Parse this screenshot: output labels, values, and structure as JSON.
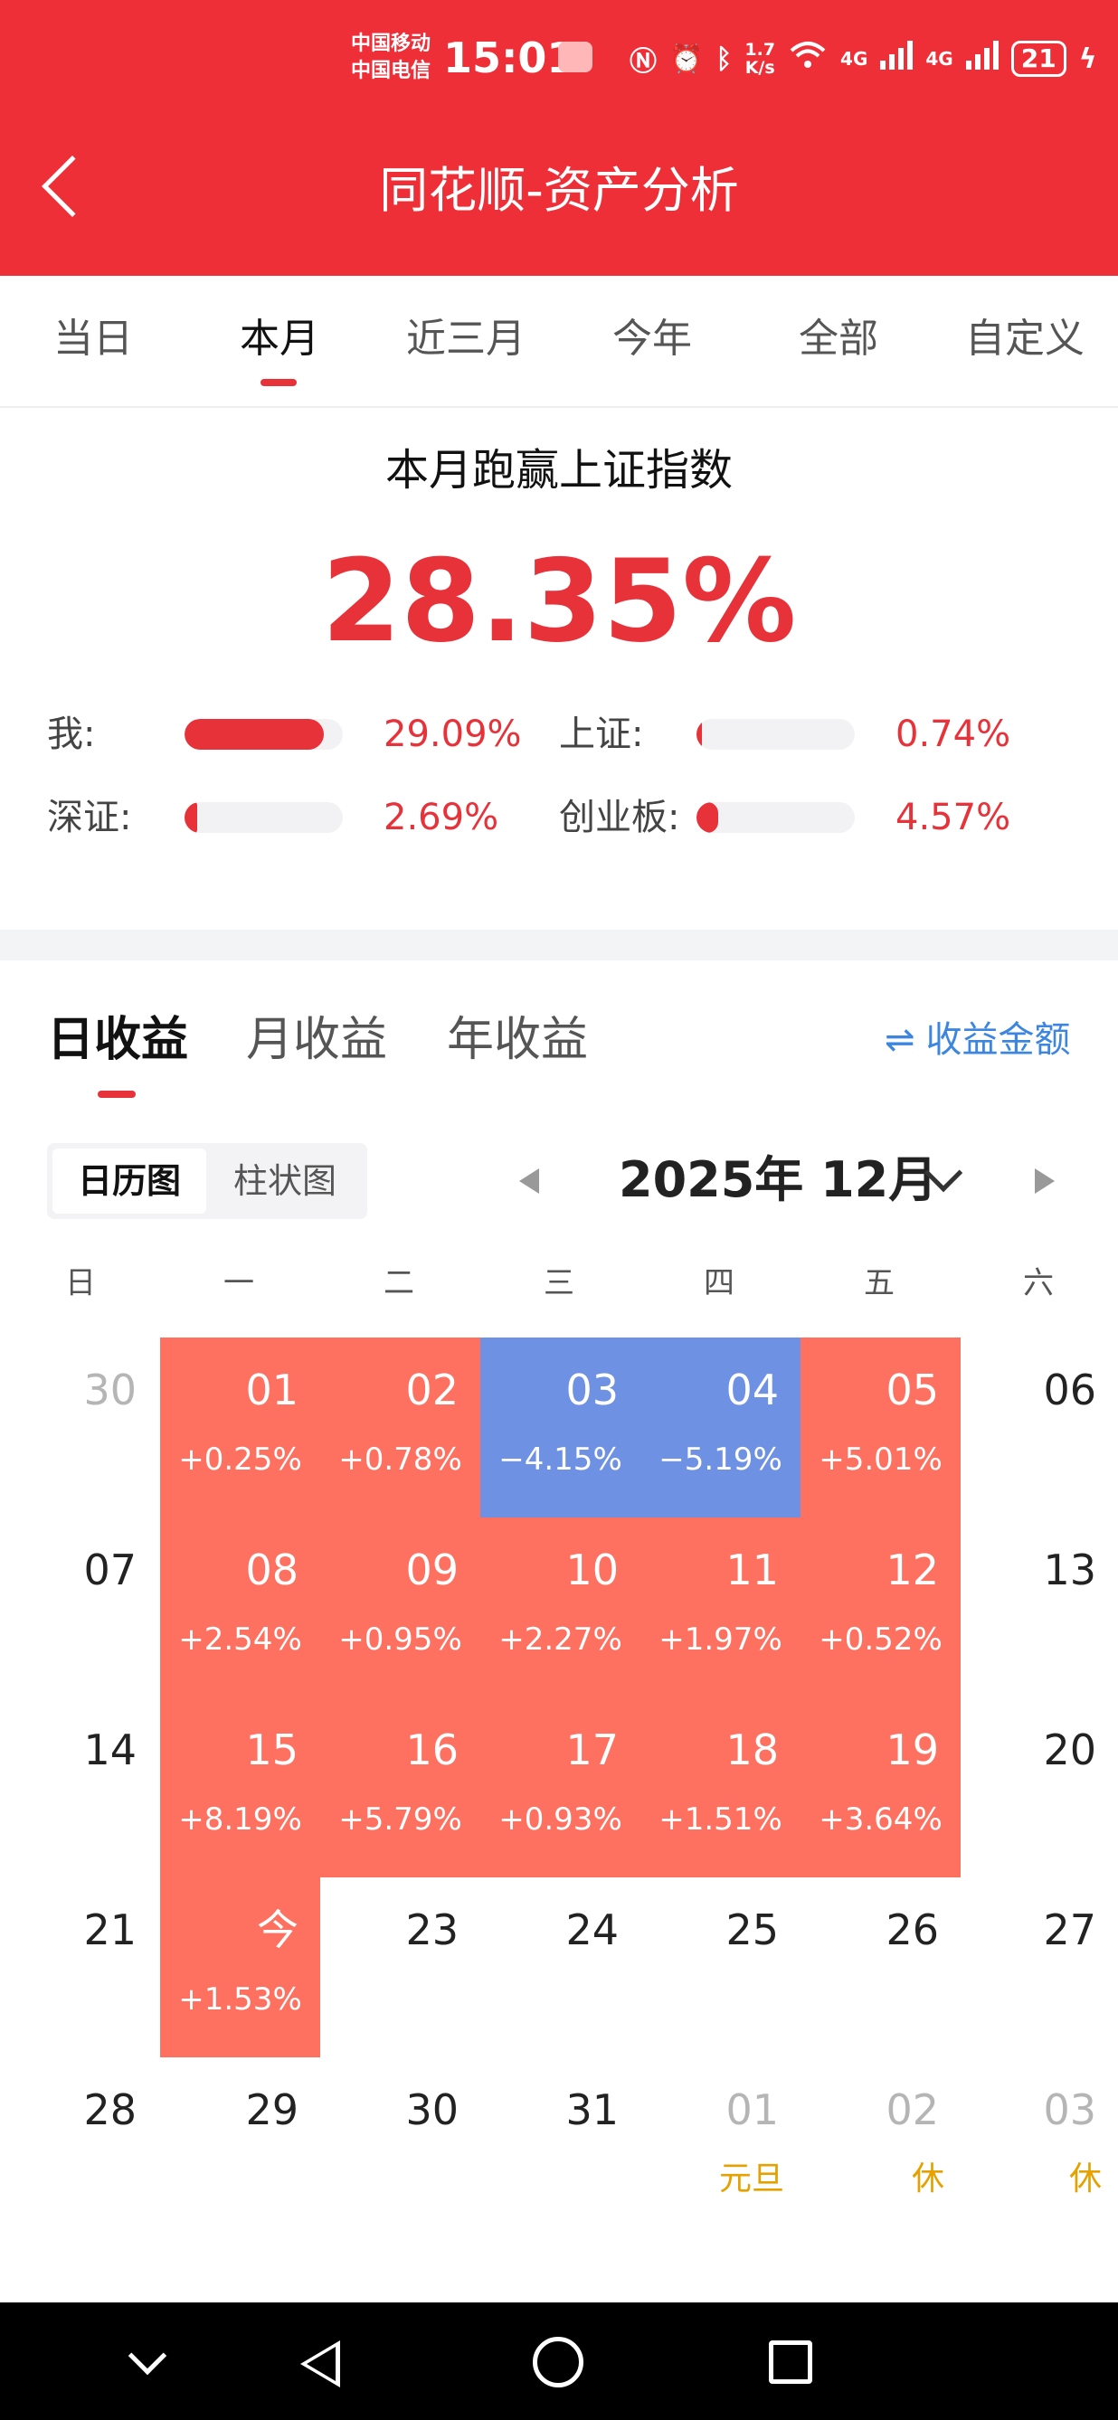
{
  "status_bar": {
    "carrier_1": "中国移动",
    "carrier_2": "中国电信",
    "time": "15:01",
    "speed_value": "1.7",
    "speed_unit": "K/s",
    "network_1": "4G",
    "network_2": "4G",
    "battery": "21",
    "icons": [
      "nfc-icon",
      "alarm-icon",
      "bluetooth-icon",
      "wifi-icon",
      "signal-icon",
      "battery-icon",
      "charging-icon"
    ]
  },
  "header": {
    "title": "同花顺-资产分析"
  },
  "period_tabs": [
    {
      "label": "当日"
    },
    {
      "label": "本月"
    },
    {
      "label": "近三月"
    },
    {
      "label": "今年"
    },
    {
      "label": "全部"
    },
    {
      "label": "自定义"
    }
  ],
  "period_tabs_active": "本月",
  "summary": {
    "title": "本月跑赢上证指数",
    "value": "28.35%"
  },
  "comparisons": [
    {
      "label": "我:",
      "value": "29.09%",
      "percent": 29.09
    },
    {
      "label": "上证:",
      "value": "0.74%",
      "percent": 0.74
    },
    {
      "label": "深证:",
      "value": "2.69%",
      "percent": 2.69
    },
    {
      "label": "创业板:",
      "value": "4.57%",
      "percent": 4.57
    }
  ],
  "revenue_tabs": [
    {
      "label": "日收益"
    },
    {
      "label": "月收益"
    },
    {
      "label": "年收益"
    }
  ],
  "revenue_tabs_active": "日收益",
  "amount_link": {
    "icon": "swap-icon",
    "icon_glyph": "⇌",
    "label": "收益金额"
  },
  "view_switch": [
    {
      "label": "日历图"
    },
    {
      "label": "柱状图"
    }
  ],
  "view_switch_active": "日历图",
  "month_selector": {
    "label": "2025年 12月"
  },
  "weekdays": [
    "日",
    "一",
    "二",
    "三",
    "四",
    "五",
    "六"
  ],
  "calendar": {
    "colors": {
      "up": "#fe7160",
      "down": "#6e91e4",
      "holiday": "#e6a100"
    },
    "weeks": [
      [
        {
          "day": "30",
          "dim": true
        },
        {
          "day": "01",
          "pct": "+0.25%",
          "trend": "up"
        },
        {
          "day": "02",
          "pct": "+0.78%",
          "trend": "up"
        },
        {
          "day": "03",
          "pct": "−4.15%",
          "trend": "down"
        },
        {
          "day": "04",
          "pct": "−5.19%",
          "trend": "down"
        },
        {
          "day": "05",
          "pct": "+5.01%",
          "trend": "up"
        },
        {
          "day": "06"
        }
      ],
      [
        {
          "day": "07"
        },
        {
          "day": "08",
          "pct": "+2.54%",
          "trend": "up"
        },
        {
          "day": "09",
          "pct": "+0.95%",
          "trend": "up"
        },
        {
          "day": "10",
          "pct": "+2.27%",
          "trend": "up"
        },
        {
          "day": "11",
          "pct": "+1.97%",
          "trend": "up"
        },
        {
          "day": "12",
          "pct": "+0.52%",
          "trend": "up"
        },
        {
          "day": "13"
        }
      ],
      [
        {
          "day": "14"
        },
        {
          "day": "15",
          "pct": "+8.19%",
          "trend": "up"
        },
        {
          "day": "16",
          "pct": "+5.79%",
          "trend": "up"
        },
        {
          "day": "17",
          "pct": "+0.93%",
          "trend": "up"
        },
        {
          "day": "18",
          "pct": "+1.51%",
          "trend": "up"
        },
        {
          "day": "19",
          "pct": "+3.64%",
          "trend": "up"
        },
        {
          "day": "20"
        }
      ],
      [
        {
          "day": "21"
        },
        {
          "day": "今",
          "pct": "+1.53%",
          "trend": "up"
        },
        {
          "day": "23"
        },
        {
          "day": "24"
        },
        {
          "day": "25"
        },
        {
          "day": "26"
        },
        {
          "day": "27"
        }
      ],
      [
        {
          "day": "28"
        },
        {
          "day": "29"
        },
        {
          "day": "30"
        },
        {
          "day": "31"
        },
        {
          "day": "01",
          "dim": true,
          "note": "元旦"
        },
        {
          "day": "02",
          "dim": true,
          "note": "休"
        },
        {
          "day": "03",
          "dim": true,
          "note": "休"
        }
      ]
    ]
  },
  "navbar": {
    "icons": [
      "hide-keyboard-icon",
      "back-icon",
      "home-icon",
      "recents-icon"
    ]
  }
}
